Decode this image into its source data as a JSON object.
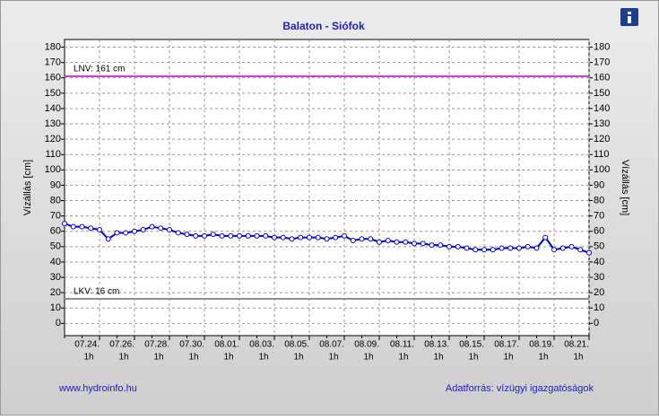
{
  "chart_data": {
    "type": "line",
    "title": "Balaton - Siófok",
    "ylabel": "Vízállás [cm]",
    "y2label": "Vízállás [cm]",
    "xlim": [
      0,
      30
    ],
    "ylim": [
      -8,
      185
    ],
    "yticks": [
      0,
      10,
      20,
      30,
      40,
      50,
      60,
      70,
      80,
      90,
      100,
      110,
      120,
      130,
      140,
      150,
      160,
      170,
      180
    ],
    "xticks": [
      {
        "value": 2,
        "label": "07.24."
      },
      {
        "value": 4,
        "label": "07.26."
      },
      {
        "value": 6,
        "label": "07.28."
      },
      {
        "value": 8,
        "label": "07.30."
      },
      {
        "value": 10,
        "label": "08.01."
      },
      {
        "value": 12,
        "label": "08.03."
      },
      {
        "value": 14,
        "label": "08.05."
      },
      {
        "value": 16,
        "label": "08.07."
      },
      {
        "value": 18,
        "label": "08.09."
      },
      {
        "value": 20,
        "label": "08.11."
      },
      {
        "value": 22,
        "label": "08.13."
      },
      {
        "value": 24,
        "label": "08.15."
      },
      {
        "value": 26,
        "label": "08.17."
      },
      {
        "value": 28,
        "label": "08.19."
      },
      {
        "value": 30,
        "label": "08.21."
      }
    ],
    "xtick_hours": [
      "1h",
      "1h",
      "1h",
      "1h",
      "1h",
      "1h",
      "1h",
      "1h",
      "1h",
      "1h",
      "1h",
      "1h",
      "1h",
      "1h",
      "1h"
    ],
    "grid": true,
    "thresholds": [
      {
        "label": "LNV: 161 cm",
        "value": 161,
        "color": "#d040d0"
      },
      {
        "label": "LKV: 16 cm",
        "value": 16,
        "color": "#909090"
      }
    ],
    "x": [
      0,
      0.5,
      1,
      1.5,
      2,
      2.5,
      3,
      3.5,
      4,
      4.5,
      5,
      5.5,
      6,
      6.5,
      7,
      7.5,
      8,
      8.5,
      9,
      9.5,
      10,
      10.5,
      11,
      11.5,
      12,
      12.5,
      13,
      13.5,
      14,
      14.5,
      15,
      15.5,
      16,
      16.5,
      17,
      17.5,
      18,
      18.5,
      19,
      19.5,
      20,
      20.5,
      21,
      21.5,
      22,
      22.5,
      23,
      23.5,
      24,
      24.5,
      25,
      25.5,
      26,
      26.5,
      27,
      27.5,
      28,
      28.5,
      29,
      29.5,
      30
    ],
    "series": [
      {
        "color": "#0000cc",
        "values": [
          65,
          63,
          63,
          62,
          61,
          55,
          59,
          59,
          60,
          61,
          63,
          62,
          61,
          59,
          58,
          57,
          57,
          58,
          57,
          57,
          57,
          57,
          57,
          57,
          56,
          56,
          55,
          56,
          56,
          56,
          55,
          56,
          57,
          54,
          55,
          55,
          53,
          54,
          53,
          53,
          52,
          52,
          51,
          51,
          50,
          50,
          49,
          48,
          48,
          48,
          49,
          49,
          49,
          50,
          49,
          56,
          48,
          49,
          50,
          48,
          46
        ]
      }
    ],
    "footer_left": "www.hydroinfo.hu",
    "footer_right": "Adatforrás: vízügyi igazgatóságok"
  }
}
